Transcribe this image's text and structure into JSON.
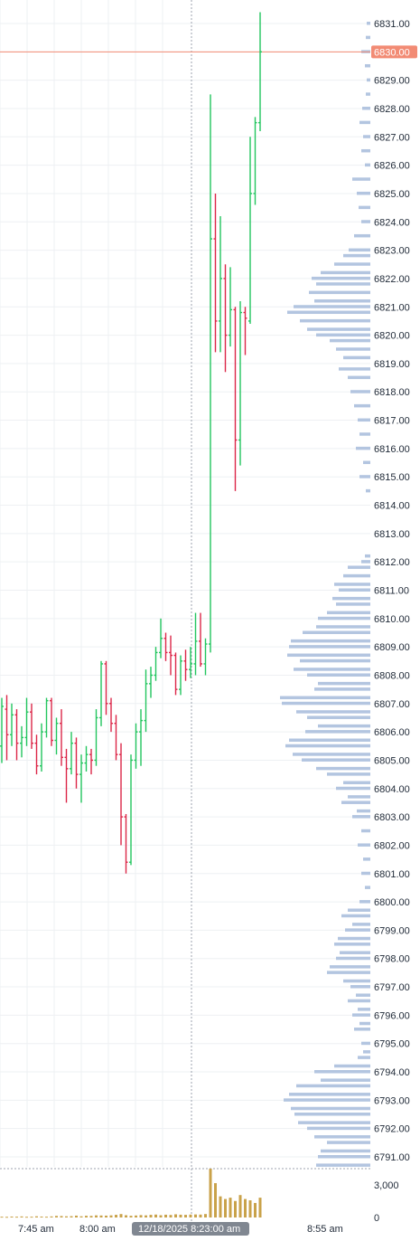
{
  "chart_data": {
    "type": "ohlc",
    "price_axis": {
      "min": 6790.5,
      "max": 6831.5,
      "tick_labels": [
        "6831.00",
        "6830.00",
        "6829.00",
        "6828.00",
        "6827.00",
        "6826.00",
        "6825.00",
        "6824.00",
        "6823.00",
        "6822.00",
        "6821.00",
        "6820.00",
        "6819.00",
        "6818.00",
        "6817.00",
        "6816.00",
        "6815.00",
        "6814.00",
        "6813.00",
        "6812.00",
        "6811.00",
        "6810.00",
        "6809.00",
        "6808.00",
        "6807.00",
        "6806.00",
        "6805.00",
        "6804.00",
        "6803.00",
        "6802.00",
        "6801.00",
        "6800.00",
        "6799.00",
        "6798.00",
        "6797.00",
        "6796.00",
        "6795.00",
        "6794.00",
        "6793.00",
        "6792.00",
        "6791.00"
      ],
      "current_price_label": "6830.00",
      "current_price": 6830.0
    },
    "volume_axis": {
      "max": 3700,
      "tick_labels": [
        "3,000",
        "0"
      ],
      "ticks": [
        3000,
        0
      ]
    },
    "time_axis": {
      "tick_labels": [
        "7:45 am",
        "8:00 am",
        "8:55 am"
      ],
      "crosshair_label": "12/18/2025 8:23:00 am"
    },
    "colors": {
      "up": "#22c55e",
      "down": "#dc2648",
      "profile": "#b3c5e0",
      "current_price": "#f28b74",
      "crosshair_badge": "#808791",
      "volume": "#c9a24a"
    },
    "grid": true,
    "bars": [
      {
        "o": 6805.5,
        "h": 6807.2,
        "l": 6804.9,
        "c": 6806.9
      },
      {
        "o": 6806.8,
        "h": 6807.3,
        "l": 6805.0,
        "c": 6805.9
      },
      {
        "o": 6805.9,
        "h": 6807.0,
        "l": 6805.5,
        "c": 6806.6
      },
      {
        "o": 6806.6,
        "h": 6806.8,
        "l": 6805.0,
        "c": 6805.6
      },
      {
        "o": 6805.6,
        "h": 6806.2,
        "l": 6805.1,
        "c": 6805.8
      },
      {
        "o": 6805.8,
        "h": 6807.2,
        "l": 6805.5,
        "c": 6806.7
      },
      {
        "o": 6806.7,
        "h": 6807.0,
        "l": 6805.4,
        "c": 6805.6
      },
      {
        "o": 6805.6,
        "h": 6805.9,
        "l": 6804.5,
        "c": 6804.8
      },
      {
        "o": 6804.8,
        "h": 6806.3,
        "l": 6804.6,
        "c": 6806.0
      },
      {
        "o": 6806.0,
        "h": 6807.2,
        "l": 6805.8,
        "c": 6807.1
      },
      {
        "o": 6807.1,
        "h": 6807.2,
        "l": 6805.5,
        "c": 6805.7
      },
      {
        "o": 6805.7,
        "h": 6806.5,
        "l": 6805.2,
        "c": 6806.3
      },
      {
        "o": 6806.3,
        "h": 6806.8,
        "l": 6804.8,
        "c": 6805.1
      },
      {
        "o": 6805.1,
        "h": 6805.4,
        "l": 6803.5,
        "c": 6804.7
      },
      {
        "o": 6804.7,
        "h": 6806.0,
        "l": 6804.5,
        "c": 6805.6
      },
      {
        "o": 6805.6,
        "h": 6805.8,
        "l": 6804.0,
        "c": 6804.5
      },
      {
        "o": 6804.5,
        "h": 6805.2,
        "l": 6803.5,
        "c": 6804.9
      },
      {
        "o": 6804.9,
        "h": 6805.5,
        "l": 6804.6,
        "c": 6805.2
      },
      {
        "o": 6805.2,
        "h": 6805.4,
        "l": 6804.5,
        "c": 6805.0
      },
      {
        "o": 6805.0,
        "h": 6806.8,
        "l": 6804.8,
        "c": 6806.5
      },
      {
        "o": 6806.5,
        "h": 6808.5,
        "l": 6806.2,
        "c": 6808.4
      },
      {
        "o": 6808.4,
        "h": 6808.5,
        "l": 6806.6,
        "c": 6807.0
      },
      {
        "o": 6807.0,
        "h": 6807.2,
        "l": 6806.0,
        "c": 6806.3
      },
      {
        "o": 6806.3,
        "h": 6806.6,
        "l": 6805.0,
        "c": 6805.2
      },
      {
        "o": 6805.2,
        "h": 6805.6,
        "l": 6802.0,
        "c": 6803.0
      },
      {
        "o": 6803.0,
        "h": 6803.1,
        "l": 6801.0,
        "c": 6801.4
      },
      {
        "o": 6801.4,
        "h": 6805.2,
        "l": 6801.3,
        "c": 6805.0
      },
      {
        "o": 6805.0,
        "h": 6806.3,
        "l": 6804.7,
        "c": 6806.0
      },
      {
        "o": 6806.0,
        "h": 6806.8,
        "l": 6804.8,
        "c": 6806.4
      },
      {
        "o": 6806.4,
        "h": 6808.2,
        "l": 6806.0,
        "c": 6807.7
      },
      {
        "o": 6807.7,
        "h": 6808.3,
        "l": 6807.2,
        "c": 6808.0
      },
      {
        "o": 6808.0,
        "h": 6809.0,
        "l": 6807.8,
        "c": 6808.8
      },
      {
        "o": 6808.8,
        "h": 6810.0,
        "l": 6808.6,
        "c": 6809.3
      },
      {
        "o": 6809.3,
        "h": 6809.5,
        "l": 6808.5,
        "c": 6808.8
      },
      {
        "o": 6808.8,
        "h": 6809.4,
        "l": 6808.0,
        "c": 6808.7
      },
      {
        "o": 6808.7,
        "h": 6808.8,
        "l": 6807.3,
        "c": 6807.5
      },
      {
        "o": 6807.5,
        "h": 6808.7,
        "l": 6807.3,
        "c": 6808.5
      },
      {
        "o": 6808.5,
        "h": 6808.9,
        "l": 6807.8,
        "c": 6808.2
      },
      {
        "o": 6808.2,
        "h": 6809.0,
        "l": 6807.9,
        "c": 6808.4
      },
      {
        "o": 6808.4,
        "h": 6810.2,
        "l": 6808.0,
        "c": 6809.2
      },
      {
        "o": 6809.2,
        "h": 6810.2,
        "l": 6808.3,
        "c": 6808.4
      },
      {
        "o": 6808.4,
        "h": 6809.3,
        "l": 6808.0,
        "c": 6809.1
      },
      {
        "o": 6809.1,
        "h": 6828.5,
        "l": 6808.8,
        "c": 6823.4
      },
      {
        "o": 6823.4,
        "h": 6825.0,
        "l": 6819.4,
        "c": 6820.5
      },
      {
        "o": 6820.5,
        "h": 6824.2,
        "l": 6819.4,
        "c": 6822.0
      },
      {
        "o": 6822.0,
        "h": 6822.5,
        "l": 6818.7,
        "c": 6820.0
      },
      {
        "o": 6820.0,
        "h": 6822.4,
        "l": 6819.6,
        "c": 6820.9
      },
      {
        "o": 6820.9,
        "h": 6821.0,
        "l": 6814.5,
        "c": 6816.3
      },
      {
        "o": 6816.3,
        "h": 6821.2,
        "l": 6815.4,
        "c": 6820.8
      },
      {
        "o": 6820.8,
        "h": 6821.0,
        "l": 6819.3,
        "c": 6820.6
      },
      {
        "o": 6820.5,
        "h": 6827.0,
        "l": 6820.4,
        "c": 6825.0
      },
      {
        "o": 6825.0,
        "h": 6827.7,
        "l": 6824.6,
        "c": 6827.5
      },
      {
        "o": 6827.5,
        "h": 6831.4,
        "l": 6827.2,
        "c": 6830.0
      }
    ],
    "volumes": [
      60,
      50,
      70,
      60,
      80,
      55,
      60,
      90,
      70,
      60,
      80,
      120,
      110,
      90,
      100,
      140,
      90,
      130,
      120,
      160,
      150,
      140,
      160,
      200,
      260,
      170,
      130,
      150,
      180,
      160,
      200,
      220,
      170,
      210,
      190,
      240,
      210,
      200,
      220,
      230,
      220,
      260,
      3700,
      2600,
      1600,
      1400,
      1500,
      1250,
      1700,
      1400,
      1300,
      1100,
      1500
    ],
    "volume_profile": [
      {
        "p": 6831.0,
        "v": 4
      },
      {
        "p": 6830.5,
        "v": 5
      },
      {
        "p": 6830.0,
        "v": 10
      },
      {
        "p": 6829.5,
        "v": 6
      },
      {
        "p": 6829.0,
        "v": 4
      },
      {
        "p": 6828.5,
        "v": 5
      },
      {
        "p": 6828.0,
        "v": 9
      },
      {
        "p": 6827.5,
        "v": 12
      },
      {
        "p": 6827.0,
        "v": 8
      },
      {
        "p": 6826.5,
        "v": 10
      },
      {
        "p": 6826.0,
        "v": 6
      },
      {
        "p": 6825.5,
        "v": 20
      },
      {
        "p": 6825.0,
        "v": 15
      },
      {
        "p": 6824.5,
        "v": 13
      },
      {
        "p": 6824.0,
        "v": 10
      },
      {
        "p": 6823.5,
        "v": 18
      },
      {
        "p": 6823.0,
        "v": 24
      },
      {
        "p": 6822.8,
        "v": 30
      },
      {
        "p": 6822.5,
        "v": 40
      },
      {
        "p": 6822.2,
        "v": 55
      },
      {
        "p": 6822.0,
        "v": 65
      },
      {
        "p": 6821.8,
        "v": 60
      },
      {
        "p": 6821.5,
        "v": 68
      },
      {
        "p": 6821.2,
        "v": 62
      },
      {
        "p": 6821.0,
        "v": 85
      },
      {
        "p": 6820.8,
        "v": 92
      },
      {
        "p": 6820.5,
        "v": 78
      },
      {
        "p": 6820.2,
        "v": 70
      },
      {
        "p": 6820.0,
        "v": 60
      },
      {
        "p": 6819.8,
        "v": 45
      },
      {
        "p": 6819.5,
        "v": 38
      },
      {
        "p": 6819.2,
        "v": 30
      },
      {
        "p": 6818.8,
        "v": 35
      },
      {
        "p": 6818.5,
        "v": 25
      },
      {
        "p": 6818.0,
        "v": 22
      },
      {
        "p": 6817.5,
        "v": 18
      },
      {
        "p": 6817.0,
        "v": 14
      },
      {
        "p": 6816.5,
        "v": 12
      },
      {
        "p": 6816.0,
        "v": 16
      },
      {
        "p": 6815.5,
        "v": 8
      },
      {
        "p": 6815.0,
        "v": 12
      },
      {
        "p": 6814.5,
        "v": 5
      },
      {
        "p": 6812.2,
        "v": 6
      },
      {
        "p": 6812.0,
        "v": 10
      },
      {
        "p": 6811.8,
        "v": 25
      },
      {
        "p": 6811.5,
        "v": 30
      },
      {
        "p": 6811.2,
        "v": 40
      },
      {
        "p": 6811.0,
        "v": 35
      },
      {
        "p": 6810.7,
        "v": 42
      },
      {
        "p": 6810.5,
        "v": 38
      },
      {
        "p": 6810.2,
        "v": 48
      },
      {
        "p": 6810.0,
        "v": 58
      },
      {
        "p": 6809.7,
        "v": 60
      },
      {
        "p": 6809.5,
        "v": 75
      },
      {
        "p": 6809.2,
        "v": 88
      },
      {
        "p": 6809.0,
        "v": 90
      },
      {
        "p": 6808.7,
        "v": 92
      },
      {
        "p": 6808.5,
        "v": 78
      },
      {
        "p": 6808.2,
        "v": 85
      },
      {
        "p": 6808.0,
        "v": 70
      },
      {
        "p": 6807.7,
        "v": 58
      },
      {
        "p": 6807.5,
        "v": 62
      },
      {
        "p": 6807.2,
        "v": 100
      },
      {
        "p": 6807.0,
        "v": 98
      },
      {
        "p": 6806.7,
        "v": 82
      },
      {
        "p": 6806.5,
        "v": 70
      },
      {
        "p": 6806.2,
        "v": 58
      },
      {
        "p": 6806.0,
        "v": 72
      },
      {
        "p": 6805.7,
        "v": 90
      },
      {
        "p": 6805.5,
        "v": 94
      },
      {
        "p": 6805.2,
        "v": 86
      },
      {
        "p": 6805.0,
        "v": 76
      },
      {
        "p": 6804.7,
        "v": 60
      },
      {
        "p": 6804.5,
        "v": 48
      },
      {
        "p": 6804.2,
        "v": 30
      },
      {
        "p": 6804.0,
        "v": 38
      },
      {
        "p": 6803.7,
        "v": 25
      },
      {
        "p": 6803.5,
        "v": 32
      },
      {
        "p": 6803.2,
        "v": 15
      },
      {
        "p": 6803.0,
        "v": 20
      },
      {
        "p": 6802.5,
        "v": 10
      },
      {
        "p": 6802.0,
        "v": 14
      },
      {
        "p": 6801.5,
        "v": 8
      },
      {
        "p": 6801.0,
        "v": 10
      },
      {
        "p": 6800.5,
        "v": 6
      },
      {
        "p": 6800.0,
        "v": 12
      },
      {
        "p": 6799.7,
        "v": 25
      },
      {
        "p": 6799.5,
        "v": 32
      },
      {
        "p": 6799.2,
        "v": 20
      },
      {
        "p": 6799.0,
        "v": 28
      },
      {
        "p": 6798.7,
        "v": 36
      },
      {
        "p": 6798.5,
        "v": 40
      },
      {
        "p": 6798.2,
        "v": 34
      },
      {
        "p": 6798.0,
        "v": 38
      },
      {
        "p": 6797.7,
        "v": 45
      },
      {
        "p": 6797.5,
        "v": 48
      },
      {
        "p": 6797.2,
        "v": 30
      },
      {
        "p": 6797.0,
        "v": 22
      },
      {
        "p": 6796.7,
        "v": 16
      },
      {
        "p": 6796.5,
        "v": 25
      },
      {
        "p": 6796.2,
        "v": 14
      },
      {
        "p": 6796.0,
        "v": 20
      },
      {
        "p": 6795.7,
        "v": 12
      },
      {
        "p": 6795.5,
        "v": 18
      },
      {
        "p": 6795.0,
        "v": 10
      },
      {
        "p": 6794.7,
        "v": 8
      },
      {
        "p": 6794.5,
        "v": 14
      },
      {
        "p": 6794.2,
        "v": 40
      },
      {
        "p": 6794.0,
        "v": 62
      },
      {
        "p": 6793.7,
        "v": 55
      },
      {
        "p": 6793.5,
        "v": 82
      },
      {
        "p": 6793.2,
        "v": 90
      },
      {
        "p": 6793.0,
        "v": 96
      },
      {
        "p": 6792.7,
        "v": 88
      },
      {
        "p": 6792.5,
        "v": 84
      },
      {
        "p": 6792.2,
        "v": 80
      },
      {
        "p": 6792.0,
        "v": 70
      },
      {
        "p": 6791.7,
        "v": 62
      },
      {
        "p": 6791.5,
        "v": 48
      },
      {
        "p": 6791.2,
        "v": 55
      },
      {
        "p": 6791.0,
        "v": 58
      },
      {
        "p": 6790.7,
        "v": 60
      }
    ]
  }
}
